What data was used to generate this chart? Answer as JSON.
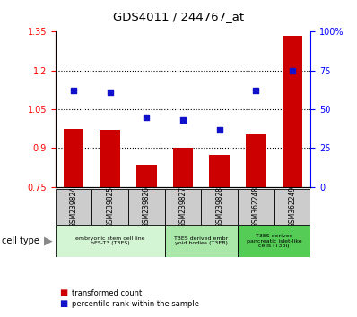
{
  "title": "GDS4011 / 244767_at",
  "samples": [
    "GSM239824",
    "GSM239825",
    "GSM239826",
    "GSM239827",
    "GSM239828",
    "GSM362248",
    "GSM362249"
  ],
  "transformed_count": [
    0.975,
    0.97,
    0.835,
    0.9,
    0.873,
    0.955,
    1.335
  ],
  "percentile_rank": [
    62,
    61,
    45,
    43,
    37,
    62,
    75
  ],
  "ylim_left": [
    0.75,
    1.35
  ],
  "ylim_right": [
    0,
    100
  ],
  "yticks_left": [
    0.75,
    0.9,
    1.05,
    1.2,
    1.35
  ],
  "ytick_labels_left": [
    "0.75",
    "0.9",
    "1.05",
    "1.2",
    "1.35"
  ],
  "yticks_right": [
    0,
    25,
    50,
    75,
    100
  ],
  "ytick_labels_right": [
    "0",
    "25",
    "50",
    "75",
    "100%"
  ],
  "bar_color": "#cc0000",
  "dot_color": "#1111cc",
  "bar_width": 0.55,
  "groups": [
    {
      "label": "embryonic stem cell line\nhES-T3 (T3ES)",
      "indices": [
        0,
        1,
        2
      ],
      "color": "#d4f5d4"
    },
    {
      "label": "T3ES derived embr\nyoid bodies (T3EB)",
      "indices": [
        3,
        4
      ],
      "color": "#aae8aa"
    },
    {
      "label": "T3ES derived\npancreatic islet-like\ncells (T3pi)",
      "indices": [
        5,
        6
      ],
      "color": "#55cc55"
    }
  ],
  "legend_bar_label": "transformed count",
  "legend_dot_label": "percentile rank within the sample",
  "cell_type_label": "cell type"
}
